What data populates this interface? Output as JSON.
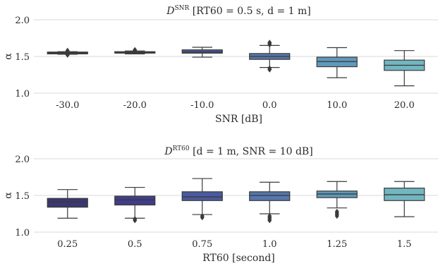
{
  "chart_data": [
    {
      "type": "box",
      "title_main": "D",
      "title_sup": "SNR",
      "title_rest": " [RT60 = 0.5 s, d = 1 m]",
      "xlabel": "SNR [dB]",
      "ylabel": "α",
      "ylim": [
        1.0,
        2.0
      ],
      "yticks": [
        "1.0",
        "1.5",
        "2.0"
      ],
      "grid": true,
      "categories": [
        "-30.0",
        "-20.0",
        "-10.0",
        "0.0",
        "10.0",
        "20.0"
      ],
      "boxes": [
        {
          "whislo": 1.53,
          "q1": 1.535,
          "med": 1.55,
          "q3": 1.56,
          "whishi": 1.565,
          "fliers": [
            1.52,
            1.525,
            1.57,
            1.58
          ],
          "color": "#3b3773"
        },
        {
          "whislo": 1.535,
          "q1": 1.545,
          "med": 1.555,
          "q3": 1.565,
          "whishi": 1.575,
          "fliers": [
            1.58,
            1.585,
            1.59
          ],
          "color": "#403d8a"
        },
        {
          "whislo": 1.49,
          "q1": 1.545,
          "med": 1.56,
          "q3": 1.59,
          "whishi": 1.625,
          "fliers": [],
          "color": "#4a5aa0"
        },
        {
          "whislo": 1.35,
          "q1": 1.46,
          "med": 1.5,
          "q3": 1.54,
          "whishi": 1.65,
          "fliers": [
            1.32,
            1.34,
            1.66,
            1.68,
            1.69
          ],
          "color": "#5676ad"
        },
        {
          "whislo": 1.21,
          "q1": 1.36,
          "med": 1.43,
          "q3": 1.49,
          "whishi": 1.62,
          "fliers": [],
          "color": "#5f99bc"
        },
        {
          "whislo": 1.1,
          "q1": 1.31,
          "med": 1.38,
          "q3": 1.45,
          "whishi": 1.58,
          "fliers": [],
          "color": "#72b6c0"
        }
      ]
    },
    {
      "type": "box",
      "title_main": "D",
      "title_sup": "RT60",
      "title_rest": " [d = 1 m, SNR = 10 dB]",
      "xlabel": "RT60 [second]",
      "ylabel": "α",
      "ylim": [
        1.0,
        2.0
      ],
      "yticks": [
        "1.0",
        "1.5",
        "2.0"
      ],
      "grid": true,
      "categories": [
        "0.25",
        "0.5",
        "0.75",
        "1.0",
        "1.25",
        "1.5"
      ],
      "boxes": [
        {
          "whislo": 1.19,
          "q1": 1.34,
          "med": 1.41,
          "q3": 1.46,
          "whishi": 1.58,
          "fliers": [],
          "color": "#3b3773"
        },
        {
          "whislo": 1.19,
          "q1": 1.37,
          "med": 1.44,
          "q3": 1.49,
          "whishi": 1.61,
          "fliers": [
            1.16,
            1.18
          ],
          "color": "#403d8a"
        },
        {
          "whislo": 1.24,
          "q1": 1.43,
          "med": 1.48,
          "q3": 1.55,
          "whishi": 1.73,
          "fliers": [
            1.2,
            1.22
          ],
          "color": "#4a5aa0"
        },
        {
          "whislo": 1.25,
          "q1": 1.43,
          "med": 1.5,
          "q3": 1.55,
          "whishi": 1.68,
          "fliers": [
            1.16,
            1.18,
            1.2,
            1.22
          ],
          "color": "#5676ad"
        },
        {
          "whislo": 1.33,
          "q1": 1.47,
          "med": 1.52,
          "q3": 1.56,
          "whishi": 1.69,
          "fliers": [
            1.22,
            1.24,
            1.26,
            1.28
          ],
          "color": "#5f99bc"
        },
        {
          "whislo": 1.21,
          "q1": 1.43,
          "med": 1.51,
          "q3": 1.6,
          "whishi": 1.69,
          "fliers": [],
          "color": "#72b6c0"
        }
      ]
    }
  ]
}
